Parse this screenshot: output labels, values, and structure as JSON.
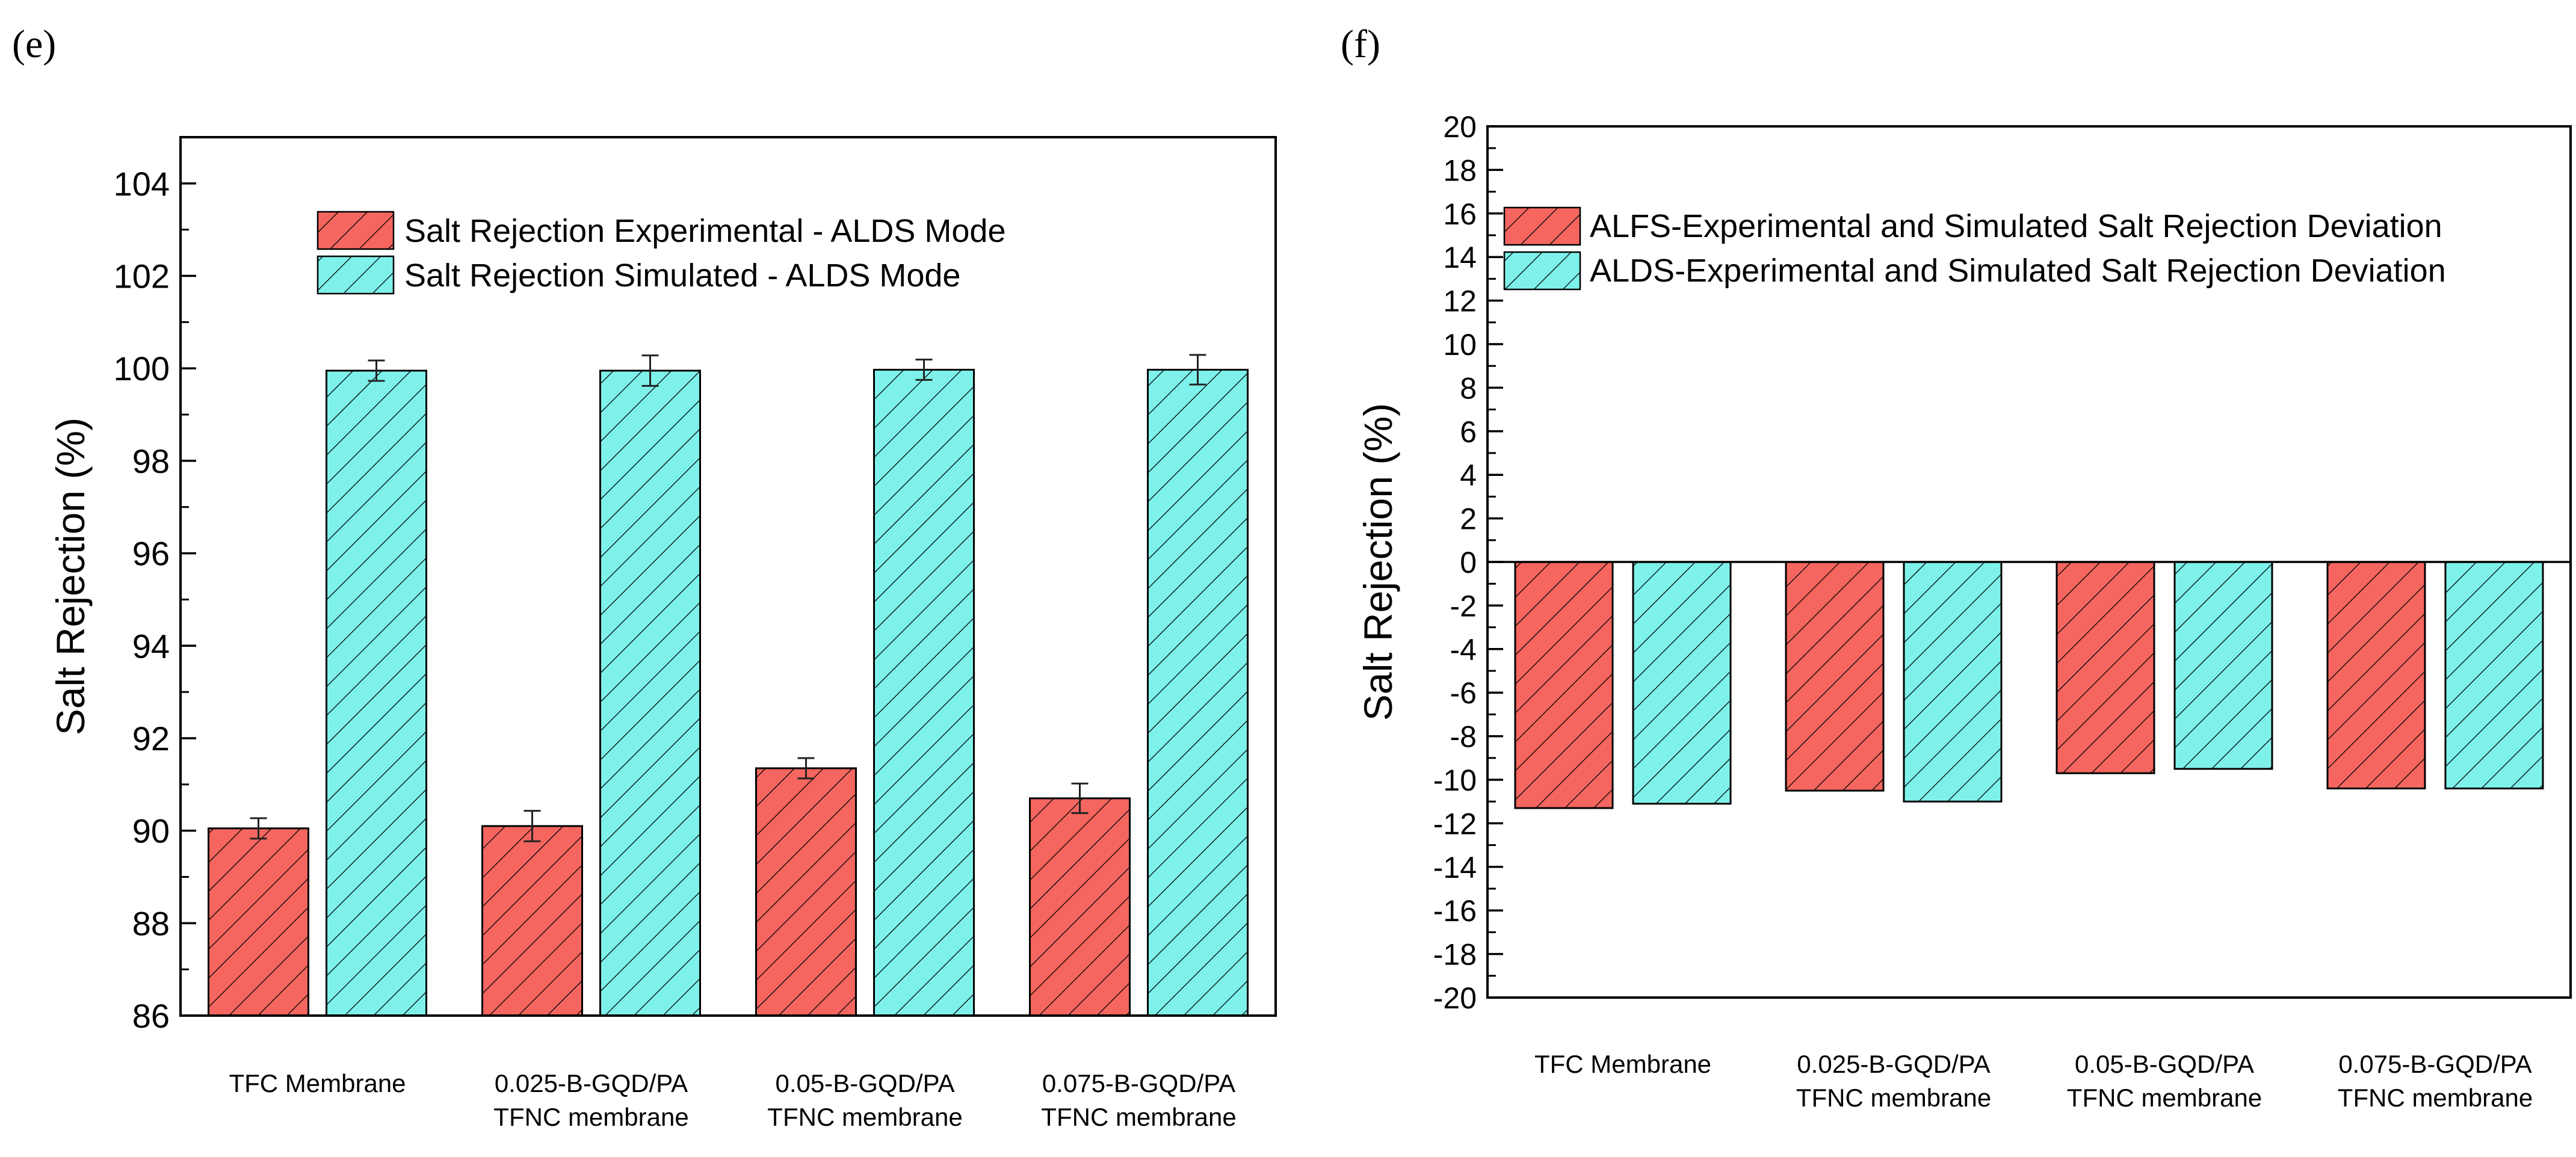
{
  "chart_data": [
    {
      "panel": "(e)",
      "type": "bar",
      "title": "",
      "xlabel": "",
      "ylabel": "Salt Rejection (%)",
      "ylim": [
        86,
        105
      ],
      "yticks": [
        86,
        88,
        90,
        92,
        94,
        96,
        98,
        100,
        102,
        104
      ],
      "grid": false,
      "legend_position": "top-center",
      "categories": [
        [
          "TFC Membrane"
        ],
        [
          "0.025-B-GQD/PA",
          "TFNC membrane"
        ],
        [
          "0.05-B-GQD/PA",
          "TFNC membrane"
        ],
        [
          "0.075-B-GQD/PA",
          "TFNC membrane"
        ]
      ],
      "series": [
        {
          "name": "Salt Rejection Experimental - ALDS Mode",
          "color": "#f4665f",
          "values": [
            90.05,
            90.1,
            91.35,
            90.7
          ],
          "errors": [
            0.22,
            0.33,
            0.22,
            0.32
          ]
        },
        {
          "name": "Salt Rejection Simulated - ALDS Mode",
          "color": "#7ef2ea",
          "values": [
            99.95,
            99.95,
            99.97,
            99.97
          ],
          "errors": [
            0.22,
            0.33,
            0.22,
            0.32
          ]
        }
      ]
    },
    {
      "panel": "(f)",
      "type": "bar",
      "title": "",
      "xlabel": "",
      "ylabel": "Salt Rejection (%)",
      "ylim": [
        -20,
        20
      ],
      "yticks": [
        20,
        18,
        16,
        14,
        12,
        10,
        8,
        6,
        4,
        2,
        0,
        -2,
        -4,
        -6,
        -8,
        -10,
        -12,
        -14,
        -16,
        -18,
        -20
      ],
      "grid": false,
      "legend_position": "top-left",
      "categories": [
        [
          "TFC Membrane"
        ],
        [
          "0.025-B-GQD/PA",
          "TFNC membrane"
        ],
        [
          "0.05-B-GQD/PA",
          "TFNC membrane"
        ],
        [
          "0.075-B-GQD/PA",
          "TFNC membrane"
        ]
      ],
      "series": [
        {
          "name": "ALFS-Experimental and Simulated Salt Rejection Deviation",
          "color": "#f4665f",
          "values": [
            -11.3,
            -10.5,
            -9.7,
            -10.4
          ]
        },
        {
          "name": "ALDS-Experimental and Simulated Salt Rejection Deviation",
          "color": "#7ef2ea",
          "values": [
            -11.1,
            -11.0,
            -9.5,
            -10.4
          ]
        }
      ]
    }
  ]
}
